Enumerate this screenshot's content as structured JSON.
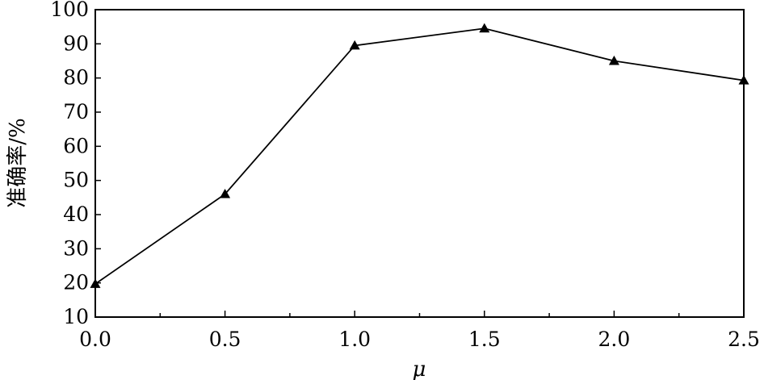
{
  "chart_data": {
    "type": "line",
    "title": "",
    "xlabel": "μ",
    "ylabel": "准确率/%",
    "x": [
      0.0,
      0.5,
      1.0,
      1.5,
      2.0,
      2.5
    ],
    "x_tick_labels": [
      "0.0",
      "0.5",
      "1.0",
      "1.5",
      "2.0",
      "2.5"
    ],
    "xlim": [
      0.0,
      2.5
    ],
    "ylim": [
      10,
      100
    ],
    "y_tick_labels": [
      "10",
      "20",
      "30",
      "40",
      "50",
      "60",
      "70",
      "80",
      "90",
      "100"
    ],
    "series": [
      {
        "values": [
          19.7,
          46.0,
          89.5,
          94.5,
          85.0,
          79.3
        ],
        "marker": "triangle",
        "color": "#000000"
      }
    ],
    "grid": false,
    "legend": false
  }
}
